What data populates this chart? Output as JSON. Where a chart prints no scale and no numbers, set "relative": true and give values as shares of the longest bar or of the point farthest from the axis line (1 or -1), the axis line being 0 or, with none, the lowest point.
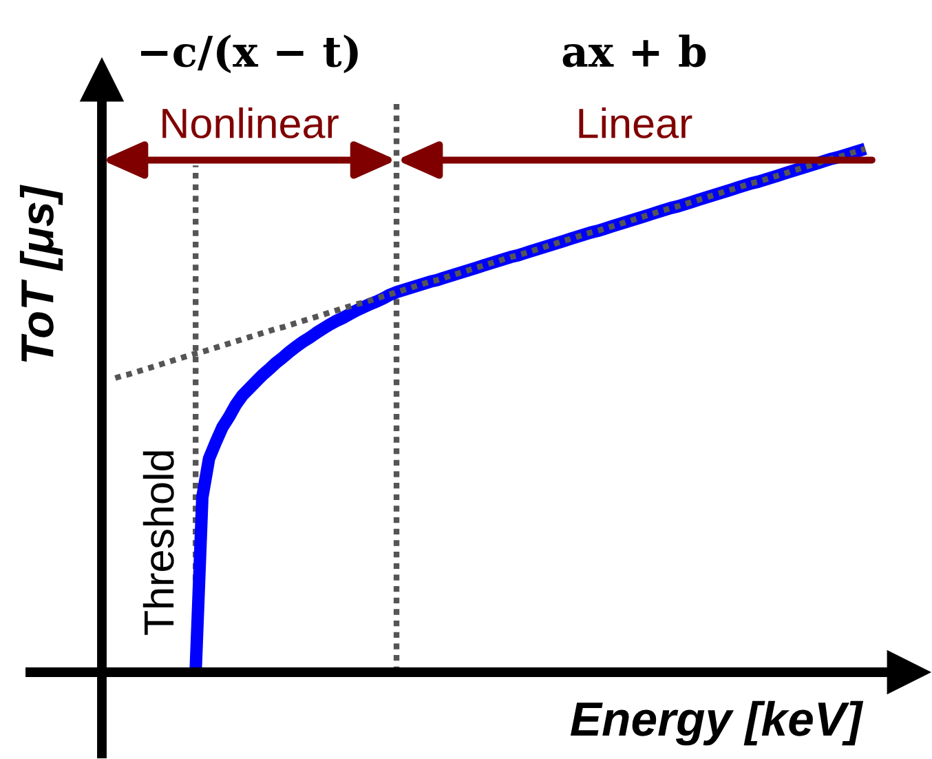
{
  "chart_data": {
    "type": "line",
    "relative": true,
    "xlabel": "Energy [keV]",
    "ylabel": "ToT [μs]",
    "annotations": [
      "−c/(x − t)",
      "ax + b",
      "Nonlinear",
      "Linear",
      "Threshold"
    ],
    "categories": [
      null,
      null,
      null,
      null,
      null,
      null,
      null,
      null,
      null,
      null,
      null,
      null,
      null,
      null,
      null,
      null,
      null,
      null,
      null,
      null,
      null,
      null,
      null,
      null,
      null,
      null,
      null,
      null,
      null,
      null,
      null,
      null,
      null,
      null,
      null,
      null,
      null,
      null,
      null,
      null,
      null,
      null,
      null,
      null,
      null,
      null,
      null,
      null,
      null,
      null,
      null,
      null,
      null,
      null,
      null,
      null,
      null,
      null,
      null,
      null,
      null,
      null,
      null,
      null,
      null,
      null,
      null,
      null,
      null,
      null,
      null,
      null,
      null,
      null,
      null,
      null,
      null,
      null,
      null,
      null,
      null,
      null,
      null,
      null,
      null,
      null,
      null,
      null,
      null,
      null,
      null,
      null,
      null,
      null,
      null,
      null,
      null,
      null,
      null,
      null,
      null,
      null,
      null,
      null,
      null,
      null,
      null,
      null,
      null,
      null,
      null,
      null,
      null,
      null,
      null,
      null
    ],
    "series": [
      {
        "color": "#0000ff",
        "line_style": "solid",
        "values": [
          null,
          null,
          null,
          null,
          null,
          null,
          null,
          null,
          null,
          null,
          null,
          null,
          null,
          null,
          0,
          0.334,
          0.408,
          0.439,
          0.468,
          0.488,
          0.511,
          0.529,
          0.542,
          0.555,
          0.568,
          0.579,
          0.591,
          0.601,
          0.612,
          0.622,
          0.631,
          0.639,
          0.648,
          0.656,
          0.664,
          0.671,
          0.677,
          0.684,
          0.691,
          0.697,
          0.703,
          0.708,
          0.714,
          0.721,
          0.726,
          0.73,
          0.734,
          0.738,
          0.742,
          0.746,
          0.749,
          0.753,
          0.757,
          0.761,
          0.765,
          0.769,
          0.773,
          0.777,
          0.781,
          0.785,
          0.789,
          0.793,
          0.796,
          0.8,
          0.804,
          0.808,
          0.812,
          0.816,
          0.82,
          0.824,
          0.828,
          0.832,
          0.836,
          0.84,
          0.843,
          0.847,
          0.851,
          0.855,
          0.859,
          0.863,
          0.867,
          0.871,
          0.875,
          0.879,
          0.883,
          0.887,
          0.89,
          0.894,
          0.898,
          0.902,
          0.906,
          0.91,
          0.914,
          0.918,
          0.922,
          0.926,
          0.93,
          0.934,
          0.937,
          0.941,
          0.945,
          0.949,
          0.953,
          0.957,
          0.961,
          0.965,
          0.969,
          0.973,
          0.977,
          0.981,
          0.984,
          0.988,
          0.992,
          0.996,
          1.0,
          null
        ]
      },
      {
        "color": "#555555",
        "line_style": "dotted",
        "values": [
          null,
          null,
          0.562,
          0.566,
          0.569,
          0.573,
          0.577,
          0.581,
          0.585,
          0.589,
          0.593,
          0.597,
          0.601,
          0.605,
          0.609,
          0.612,
          0.616,
          0.62,
          0.624,
          0.628,
          0.632,
          0.636,
          0.64,
          0.644,
          0.648,
          0.652,
          0.656,
          0.659,
          0.663,
          0.667,
          0.671,
          0.675,
          0.679,
          0.683,
          0.687,
          0.691,
          0.695,
          0.699,
          0.703,
          0.706,
          0.71,
          0.714,
          0.718,
          0.722,
          0.726,
          0.73,
          0.734,
          0.738,
          0.742,
          0.746,
          0.749,
          0.753,
          0.757,
          0.761,
          0.765,
          0.769,
          0.773,
          0.777,
          0.781,
          0.785,
          0.789,
          0.793,
          0.796,
          0.8,
          0.804,
          0.808,
          0.812,
          0.816,
          0.82,
          0.824,
          0.828,
          0.832,
          0.836,
          0.84,
          0.843,
          0.847,
          0.851,
          0.855,
          0.859,
          0.863,
          0.867,
          0.871,
          0.875,
          0.879,
          0.883,
          0.887,
          0.89,
          0.894,
          0.898,
          0.902,
          0.906,
          0.91,
          0.914,
          0.918,
          0.922,
          0.926,
          0.93,
          0.934,
          0.937,
          0.941,
          0.945,
          0.949,
          0.953,
          0.957,
          0.961,
          0.965,
          0.969,
          0.973,
          0.977,
          0.981,
          0.984,
          0.988,
          0.992,
          0.996,
          1.0,
          null
        ]
      }
    ]
  }
}
